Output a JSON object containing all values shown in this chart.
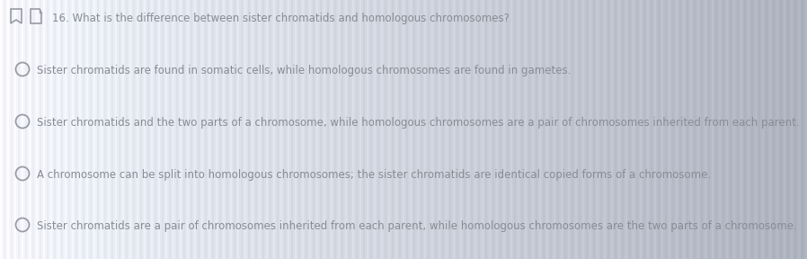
{
  "background_left": "#e8ecf2",
  "background_mid": "#c8cdd8",
  "background_right": "#a8adb8",
  "stripe_color": "#d0d5e0",
  "question_number": "16.",
  "question_text": "What is the difference between sister chromatids and homologous chromosomes?",
  "options": [
    "Sister chromatids are found in somatic cells, while homologous chromosomes are found in gametes.",
    "Sister chromatids and the two parts of a chromosome, while homologous chromosomes are a pair of chromosomes inherited from each parent.",
    "A chromosome can be split into homologous chromosomes; the sister chromatids are identical copied forms of a chromosome.",
    "Sister chromatids are a pair of chromosomes inherited from each parent, while homologous chromosomes are the two parts of a chromosome."
  ],
  "text_color": "#888c94",
  "question_color": "#888c94",
  "icon_color": "#999ca4",
  "circle_color": "#999ca4",
  "font_size_question": 8.5,
  "font_size_options": 8.5,
  "fig_width": 8.98,
  "fig_height": 2.88,
  "dpi": 100
}
